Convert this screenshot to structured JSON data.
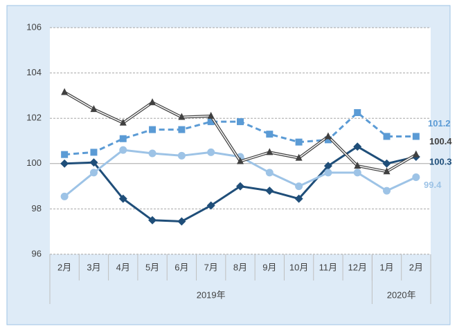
{
  "chart_data": {
    "type": "line",
    "categories": [
      "2月",
      "3月",
      "4月",
      "5月",
      "6月",
      "7月",
      "8月",
      "9月",
      "10月",
      "11月",
      "12月",
      "1月",
      "2月"
    ],
    "groups": [
      {
        "label": "2019年",
        "span": 11
      },
      {
        "label": "2020年",
        "span": 2
      }
    ],
    "ylim": [
      96,
      106
    ],
    "yticks": [
      96,
      98,
      100,
      102,
      104,
      106
    ],
    "grid": true,
    "series": [
      {
        "color": "#1f4e79",
        "style": "solid",
        "marker": "diamond",
        "values": [
          100.0,
          100.05,
          98.45,
          97.5,
          97.45,
          98.15,
          99.0,
          98.8,
          98.45,
          99.9,
          100.75,
          100.0,
          100.3
        ]
      },
      {
        "color": "#5b9bd5",
        "style": "dashed",
        "marker": "square",
        "values": [
          100.4,
          100.5,
          101.1,
          101.5,
          101.5,
          101.85,
          101.85,
          101.3,
          100.95,
          101.05,
          102.25,
          101.2,
          101.2
        ]
      },
      {
        "color": "#9dc3e6",
        "style": "solid",
        "marker": "circle",
        "values": [
          98.55,
          99.6,
          100.6,
          100.45,
          100.35,
          100.5,
          100.3,
          99.6,
          99.0,
          99.6,
          99.6,
          98.8,
          99.4
        ]
      },
      {
        "color": "#404040",
        "style": "double",
        "marker": "triangle",
        "values": [
          103.15,
          102.4,
          101.8,
          102.7,
          102.05,
          102.1,
          100.1,
          100.5,
          100.25,
          101.2,
          99.9,
          99.65,
          100.4
        ]
      }
    ]
  }
}
